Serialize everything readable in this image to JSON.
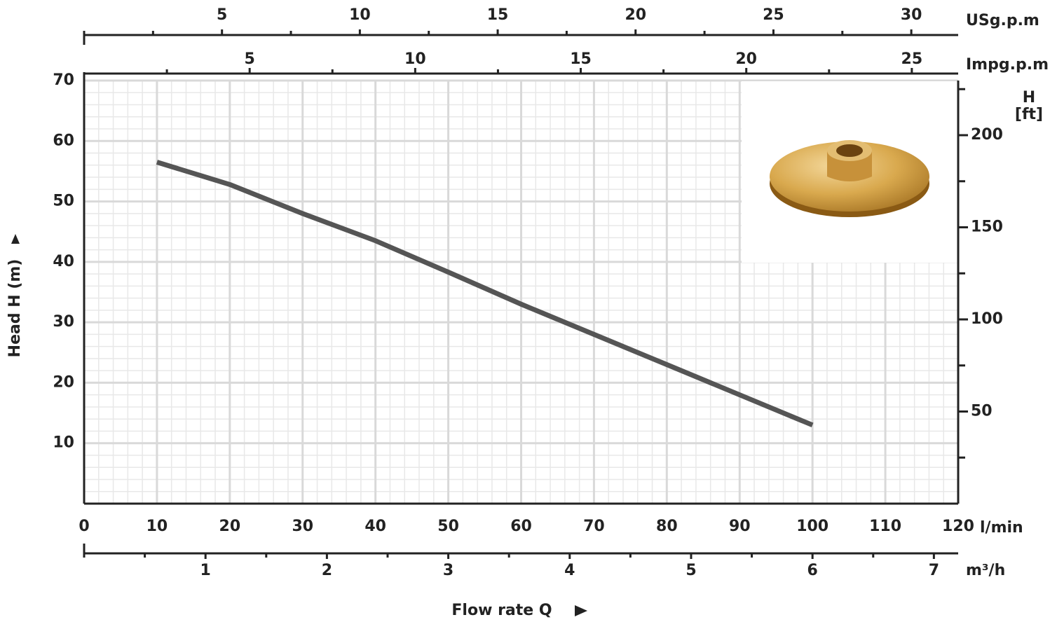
{
  "chart_data": {
    "type": "line",
    "x_label": "l/min",
    "x_title": "Flow rate Q",
    "y_label": "Head H (m)",
    "x": [
      10,
      20,
      30,
      40,
      50,
      60,
      70,
      80,
      90,
      100
    ],
    "series": [
      {
        "color": "#555555",
        "values": [
          56.5,
          52.8,
          48,
          43.5,
          38.3,
          33,
          28,
          23,
          18,
          13
        ]
      }
    ],
    "xlim": [
      0,
      120
    ],
    "xticks": [
      0,
      10,
      20,
      30,
      40,
      50,
      60,
      70,
      80,
      90,
      100,
      110,
      120
    ],
    "ylim": [
      0,
      70
    ],
    "yticks": [
      10,
      20,
      30,
      40,
      50,
      60,
      70
    ],
    "grid": true,
    "x_minor_step": 2,
    "y_minor_step": 2,
    "y2_label": [
      "H",
      "[ft]"
    ],
    "y2lim": [
      0,
      229.66
    ],
    "y2ticks": [
      50,
      100,
      150,
      200
    ],
    "y2_minor_ticks": [
      25,
      75,
      125,
      175,
      225
    ],
    "extra_x_axes": [
      {
        "label": "USg.p.m",
        "lim": [
          0,
          31.7
        ],
        "ticks": [
          5,
          10,
          15,
          20,
          25,
          30
        ],
        "minor_ticks": [
          0,
          2.5,
          7.5,
          12.5,
          17.5,
          22.5,
          27.5
        ],
        "side": "top"
      },
      {
        "label": "Impg.p.m",
        "lim": [
          0,
          26.4
        ],
        "ticks": [
          5,
          10,
          15,
          20,
          25
        ],
        "minor_ticks": [
          2.5,
          7.5,
          12.5,
          17.5,
          22.5
        ],
        "side": "top"
      },
      {
        "label": "m³/h",
        "lim": [
          0,
          7.2
        ],
        "ticks": [
          1,
          2,
          3,
          4,
          5,
          6,
          7
        ],
        "minor_ticks": [
          0,
          0.5,
          1.5,
          2.5,
          3.5,
          4.5,
          5.5,
          6.5
        ],
        "side": "bottom"
      }
    ]
  }
}
